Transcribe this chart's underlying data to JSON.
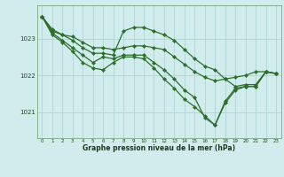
{
  "title": "Graphe pression niveau de la mer (hPa)",
  "bg_color": "#d0ecec",
  "line_color": "#2d6e2d",
  "grid_color": "#b0d4d4",
  "xlim": [
    -0.5,
    23.5
  ],
  "ylim": [
    1020.3,
    1023.9
  ],
  "yticks": [
    1021,
    1022,
    1023
  ],
  "xticks": [
    0,
    1,
    2,
    3,
    4,
    5,
    6,
    7,
    8,
    9,
    10,
    11,
    12,
    13,
    14,
    15,
    16,
    17,
    18,
    19,
    20,
    21,
    22,
    23
  ],
  "series": [
    [
      1023.6,
      1023.25,
      1023.1,
      1023.05,
      1022.9,
      1022.75,
      1022.75,
      1022.7,
      1022.75,
      1022.8,
      1022.8,
      1022.75,
      1022.7,
      1022.5,
      1022.3,
      1022.1,
      1021.95,
      1021.85,
      1021.9,
      1021.95,
      1022.0,
      1022.1,
      1022.1,
      1022.05
    ],
    [
      1023.6,
      1023.2,
      1023.1,
      1022.95,
      1022.75,
      1022.6,
      1022.6,
      1022.55,
      1023.2,
      1023.3,
      1023.3,
      1023.2,
      1023.1,
      1022.95,
      1022.7,
      1022.45,
      1022.25,
      1022.15,
      1021.9,
      1021.7,
      1021.75,
      1021.75,
      1022.1,
      1022.05
    ],
    [
      1023.6,
      1023.15,
      1022.95,
      1022.75,
      1022.55,
      1022.35,
      1022.5,
      1022.45,
      1022.55,
      1022.55,
      1022.55,
      1022.35,
      1022.15,
      1021.9,
      1021.6,
      1021.4,
      1020.85,
      1020.65,
      1021.3,
      1021.65,
      1021.7,
      1021.7,
      1022.1,
      1022.05
    ],
    [
      1023.6,
      1023.1,
      1022.9,
      1022.65,
      1022.35,
      1022.2,
      1022.15,
      1022.35,
      1022.5,
      1022.5,
      1022.45,
      1022.2,
      1021.9,
      1021.65,
      1021.35,
      1021.15,
      1020.9,
      1020.65,
      1021.25,
      1021.6,
      1021.7,
      1021.7,
      1022.1,
      1022.05
    ]
  ]
}
